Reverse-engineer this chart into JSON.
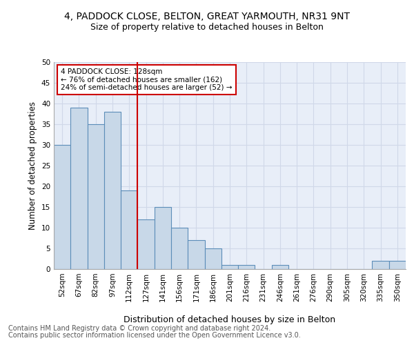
{
  "title1": "4, PADDOCK CLOSE, BELTON, GREAT YARMOUTH, NR31 9NT",
  "title2": "Size of property relative to detached houses in Belton",
  "xlabel": "Distribution of detached houses by size in Belton",
  "ylabel": "Number of detached properties",
  "categories": [
    "52sqm",
    "67sqm",
    "82sqm",
    "97sqm",
    "112sqm",
    "127sqm",
    "141sqm",
    "156sqm",
    "171sqm",
    "186sqm",
    "201sqm",
    "216sqm",
    "231sqm",
    "246sqm",
    "261sqm",
    "276sqm",
    "290sqm",
    "305sqm",
    "320sqm",
    "335sqm",
    "350sqm"
  ],
  "values": [
    30,
    39,
    35,
    38,
    19,
    12,
    15,
    10,
    7,
    5,
    1,
    1,
    0,
    1,
    0,
    0,
    0,
    0,
    0,
    2,
    2
  ],
  "bar_color": "#c8d8e8",
  "bar_edge_color": "#5b8db8",
  "vline_x_idx": 5,
  "vline_color": "#cc0000",
  "annotation_line1": "4 PADDOCK CLOSE: 128sqm",
  "annotation_line2": "← 76% of detached houses are smaller (162)",
  "annotation_line3": "24% of semi-detached houses are larger (52) →",
  "annotation_box_color": "#cc0000",
  "ylim": [
    0,
    50
  ],
  "yticks": [
    0,
    5,
    10,
    15,
    20,
    25,
    30,
    35,
    40,
    45,
    50
  ],
  "grid_color": "#d0d8e8",
  "bg_color": "#e8eef8",
  "footer1": "Contains HM Land Registry data © Crown copyright and database right 2024.",
  "footer2": "Contains public sector information licensed under the Open Government Licence v3.0.",
  "title1_fontsize": 10,
  "title2_fontsize": 9,
  "xlabel_fontsize": 9,
  "ylabel_fontsize": 8.5,
  "tick_fontsize": 7.5,
  "footer_fontsize": 7
}
